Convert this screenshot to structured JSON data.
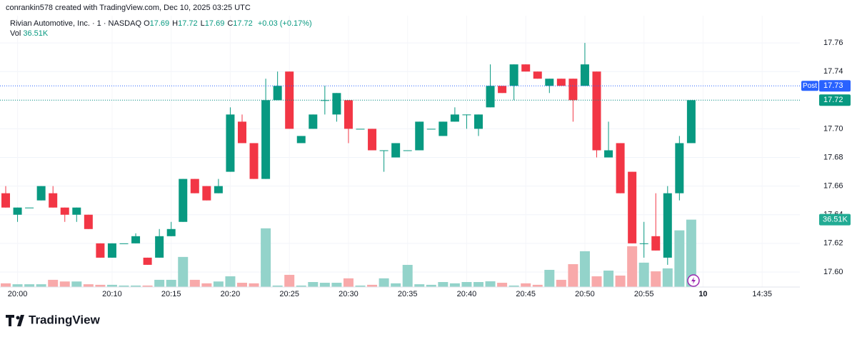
{
  "header": {
    "credit": "conrankin578 created with TradingView.com, Dec 10, 2025 03:25 UTC"
  },
  "legend": {
    "symbol": "Rivian Automotive, Inc. · 1 · NASDAQ",
    "items": [
      {
        "key": "O",
        "value": "17.69"
      },
      {
        "key": "H",
        "value": "17.72"
      },
      {
        "key": "L",
        "value": "17.69"
      },
      {
        "key": "C",
        "value": "17.72"
      }
    ],
    "change": "+0.03 (+0.17%)",
    "vol_key": "Vol",
    "vol_value": "36.51K"
  },
  "footer": {
    "brand": "TradingView"
  },
  "chart_data": {
    "type": "candlestick",
    "open": [
      17.655,
      17.64,
      17.645,
      17.65,
      17.655,
      17.645,
      17.64,
      17.64,
      17.62,
      17.61,
      17.62,
      17.62,
      17.61,
      17.61,
      17.625,
      17.635,
      17.665,
      17.66,
      17.655,
      17.67,
      17.705,
      17.69,
      17.665,
      17.72,
      17.74,
      17.69,
      17.7,
      17.72,
      17.71,
      17.72,
      17.7,
      17.7,
      17.685,
      17.68,
      17.685,
      17.685,
      17.7,
      17.695,
      17.705,
      17.71,
      17.7,
      17.715,
      17.73,
      17.73,
      17.745,
      17.74,
      17.73,
      17.735,
      17.735,
      17.73,
      17.74,
      17.68,
      17.69,
      17.67,
      17.62,
      17.625,
      17.61,
      17.655,
      17.69
    ],
    "high": [
      17.66,
      17.645,
      17.645,
      17.66,
      17.66,
      17.645,
      17.645,
      17.64,
      17.62,
      17.62,
      17.62,
      17.627,
      17.61,
      17.63,
      17.635,
      17.665,
      17.665,
      17.66,
      17.665,
      17.715,
      17.71,
      17.69,
      17.735,
      17.74,
      17.74,
      17.695,
      17.71,
      17.73,
      17.725,
      17.72,
      17.7,
      17.7,
      17.685,
      17.69,
      17.685,
      17.705,
      17.7,
      17.705,
      17.715,
      17.71,
      17.71,
      17.745,
      17.73,
      17.745,
      17.745,
      17.74,
      17.735,
      17.735,
      17.735,
      17.76,
      17.74,
      17.705,
      17.69,
      17.67,
      17.635,
      17.655,
      17.66,
      17.695,
      17.72
    ],
    "low": [
      17.645,
      17.635,
      17.645,
      17.65,
      17.645,
      17.635,
      17.635,
      17.63,
      17.61,
      17.61,
      17.62,
      17.62,
      17.605,
      17.61,
      17.625,
      17.635,
      17.655,
      17.65,
      17.655,
      17.67,
      17.69,
      17.665,
      17.665,
      17.72,
      17.7,
      17.69,
      17.7,
      17.71,
      17.705,
      17.69,
      17.7,
      17.685,
      17.67,
      17.68,
      17.685,
      17.685,
      17.7,
      17.695,
      17.705,
      17.7,
      17.695,
      17.715,
      17.725,
      17.72,
      17.74,
      17.735,
      17.725,
      17.73,
      17.705,
      17.73,
      17.68,
      17.68,
      17.655,
      17.62,
      17.61,
      17.615,
      17.605,
      17.65,
      17.69
    ],
    "close": [
      17.645,
      17.645,
      17.645,
      17.66,
      17.645,
      17.64,
      17.645,
      17.63,
      17.61,
      17.62,
      17.62,
      17.625,
      17.605,
      17.625,
      17.63,
      17.665,
      17.655,
      17.65,
      17.66,
      17.71,
      17.69,
      17.665,
      17.72,
      17.73,
      17.7,
      17.695,
      17.71,
      17.72,
      17.725,
      17.7,
      17.7,
      17.685,
      17.685,
      17.69,
      17.685,
      17.705,
      17.7,
      17.705,
      17.71,
      17.71,
      17.71,
      17.73,
      17.725,
      17.745,
      17.74,
      17.735,
      17.735,
      17.73,
      17.72,
      17.745,
      17.685,
      17.685,
      17.655,
      17.62,
      17.62,
      17.615,
      17.655,
      17.69,
      17.72
    ],
    "volume": [
      2000,
      1500,
      1500,
      1500,
      3900,
      3000,
      3000,
      1500,
      1200,
      1200,
      800,
      800,
      800,
      3900,
      3900,
      16300,
      3900,
      2000,
      3000,
      5800,
      2300,
      2000,
      31800,
      800,
      6600,
      800,
      2700,
      2300,
      2300,
      4700,
      800,
      1200,
      4700,
      2000,
      12000,
      1500,
      1200,
      2700,
      2000,
      2700,
      2700,
      3100,
      2300,
      800,
      2000,
      1200,
      9300,
      3900,
      12400,
      19400,
      5800,
      8900,
      6200,
      22100,
      13200,
      8500,
      10100,
      30700,
      36510
    ],
    "volume_label": "36.51K",
    "up_color": "#089981",
    "down_color": "#f23645",
    "vol_up_color": "#93d3ca",
    "vol_down_color": "#f8a9aa",
    "ylim": [
      17.5895,
      17.779
    ],
    "yticks": [
      {
        "value": 17.6,
        "label": "17.60"
      },
      17.62,
      17.64,
      17.66,
      17.68,
      {
        "value": 17.7,
        "label": "17.70"
      },
      17.72,
      17.74,
      17.76
    ],
    "y2lim": [
      0,
      147000
    ],
    "xticks": [
      {
        "value": 1,
        "label": "20:00"
      },
      {
        "value": 9,
        "label": "20:10"
      },
      {
        "value": 14,
        "label": "20:15"
      },
      {
        "value": 19,
        "label": "20:20"
      },
      {
        "value": 24,
        "label": "20:25"
      },
      {
        "value": 29,
        "label": "20:30"
      },
      {
        "value": 34,
        "label": "20:35"
      },
      {
        "value": 39,
        "label": "20:40"
      },
      {
        "value": 44,
        "label": "20:45"
      },
      {
        "value": 49,
        "label": "20:50"
      },
      {
        "value": 54,
        "label": "20:55"
      },
      {
        "value": 59,
        "label": "10"
      },
      {
        "value": 64,
        "label": "14:35"
      }
    ],
    "post": {
      "label": "Post",
      "value": 17.73,
      "color": "#2962ff"
    },
    "last_price": {
      "label": "17.72",
      "value": 17.72
    },
    "grid": true
  }
}
